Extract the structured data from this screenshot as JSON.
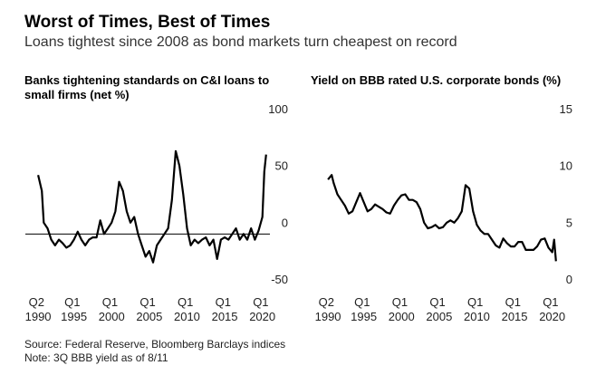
{
  "title": "Worst of Times, Best of Times",
  "subtitle": "Loans tightest since 2008 as bond markets turn cheapest on record",
  "source": "Source: Federal Reserve, Bloomberg Barclays indices",
  "note": "Note: 3Q BBB yield as of 8/11",
  "chart_data": [
    {
      "type": "line",
      "title": "Banks tightening standards on C&I loans to small firms (net %)",
      "zero_line": true,
      "color": "#000000",
      "x": [
        1990.25,
        1990.75,
        1991,
        1991.5,
        1992,
        1992.5,
        1993,
        1993.5,
        1994,
        1994.5,
        1995,
        1995.5,
        1996,
        1996.5,
        1997,
        1997.5,
        1998,
        1998.5,
        1999,
        1999.5,
        2000,
        2000.5,
        2001,
        2001.5,
        2002,
        2002.5,
        2003,
        2003.5,
        2004,
        2004.5,
        2005,
        2005.5,
        2006,
        2006.5,
        2007,
        2007.5,
        2008,
        2008.5,
        2009,
        2009.5,
        2010,
        2010.5,
        2011,
        2011.5,
        2012,
        2012.5,
        2013,
        2013.5,
        2014,
        2014.5,
        2015,
        2015.5,
        2016,
        2016.5,
        2017,
        2017.5,
        2018,
        2018.5,
        2019,
        2019.5,
        2020,
        2020.25,
        2020.5
      ],
      "values": [
        52,
        38,
        10,
        5,
        -5,
        -10,
        -5,
        -8,
        -12,
        -10,
        -5,
        2,
        -5,
        -10,
        -5,
        -3,
        -3,
        12,
        0,
        5,
        10,
        20,
        46,
        38,
        20,
        10,
        15,
        0,
        -10,
        -20,
        -15,
        -25,
        -10,
        -5,
        0,
        5,
        30,
        73,
        60,
        35,
        5,
        -10,
        -5,
        -8,
        -5,
        -3,
        -10,
        -5,
        -22,
        -5,
        -3,
        -5,
        0,
        5,
        -5,
        0,
        -5,
        5,
        -5,
        3,
        15,
        55,
        70
      ],
      "xlim": [
        1990,
        2021
      ],
      "xticks": [
        {
          "value": 1990.25,
          "label": "Q2 1990"
        },
        {
          "value": 1995,
          "label": "Q1 1995"
        },
        {
          "value": 2000,
          "label": "Q1 2000"
        },
        {
          "value": 2005,
          "label": "Q1 2005"
        },
        {
          "value": 2010,
          "label": "Q1 2010"
        },
        {
          "value": 2015,
          "label": "Q1 2015"
        },
        {
          "value": 2020,
          "label": "Q1 2020"
        }
      ],
      "ylim": [
        -50,
        100
      ],
      "yticks": [
        100,
        50,
        0,
        -50
      ]
    },
    {
      "type": "line",
      "title": "Yield on BBB rated U.S. corporate bonds (%)",
      "zero_line": false,
      "color": "#000000",
      "x": [
        1990.25,
        1990.75,
        1991,
        1991.5,
        1992,
        1992.5,
        1993,
        1993.5,
        1994,
        1994.5,
        1995,
        1995.5,
        1996,
        1996.5,
        1997,
        1997.5,
        1998,
        1998.5,
        1999,
        1999.5,
        2000,
        2000.5,
        2001,
        2001.5,
        2002,
        2002.5,
        2003,
        2003.5,
        2004,
        2004.5,
        2005,
        2005.5,
        2006,
        2006.5,
        2007,
        2007.5,
        2008,
        2008.5,
        2009,
        2009.5,
        2010,
        2010.5,
        2011,
        2011.5,
        2012,
        2012.5,
        2013,
        2013.5,
        2014,
        2014.5,
        2015,
        2015.5,
        2016,
        2016.5,
        2017,
        2017.5,
        2018,
        2018.5,
        2019,
        2019.5,
        2020,
        2020.25,
        2020.5
      ],
      "values": [
        9.8,
        10.2,
        9.5,
        8.5,
        8.0,
        7.5,
        6.8,
        7.0,
        7.8,
        8.6,
        7.8,
        7.0,
        7.2,
        7.6,
        7.4,
        7.2,
        6.9,
        6.8,
        7.5,
        8.0,
        8.4,
        8.5,
        8.0,
        8.0,
        7.8,
        7.2,
        6.0,
        5.5,
        5.6,
        5.8,
        5.5,
        5.6,
        6.0,
        6.2,
        6.0,
        6.4,
        7.0,
        9.3,
        9.0,
        7.0,
        5.8,
        5.3,
        5.0,
        5.0,
        4.5,
        4.0,
        3.8,
        4.6,
        4.2,
        3.9,
        3.9,
        4.3,
        4.3,
        3.6,
        3.6,
        3.6,
        3.9,
        4.5,
        4.6,
        3.8,
        3.4,
        4.5,
        2.6
      ],
      "xlim": [
        1990,
        2021
      ],
      "xticks": [
        {
          "value": 1990.25,
          "label": "Q2 1990"
        },
        {
          "value": 1995,
          "label": "Q1 1995"
        },
        {
          "value": 2000,
          "label": "Q1 2000"
        },
        {
          "value": 2005,
          "label": "Q1 2005"
        },
        {
          "value": 2010,
          "label": "Q1 2010"
        },
        {
          "value": 2015,
          "label": "Q1 2015"
        },
        {
          "value": 2020,
          "label": "Q1 2020"
        }
      ],
      "ylim": [
        0,
        15
      ],
      "yticks": [
        15,
        10,
        5,
        0
      ]
    }
  ]
}
